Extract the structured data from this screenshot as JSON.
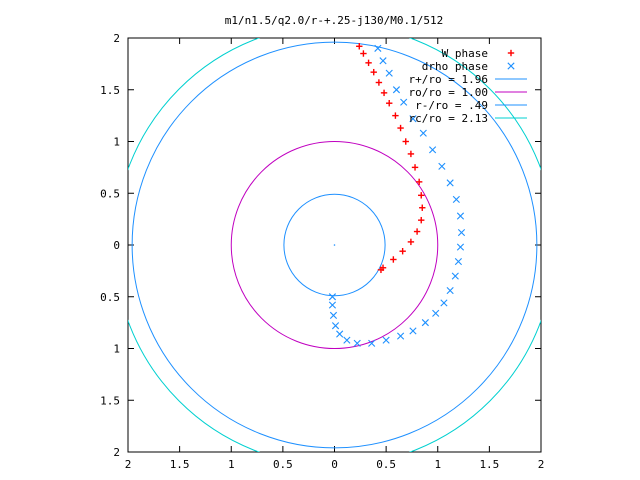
{
  "chart_data": {
    "type": "scatter",
    "title": "m1/n1.5/q2.0/r-+.25-j130/M0.1/512",
    "xlabel": "",
    "ylabel": "",
    "xlim": [
      -2,
      2
    ],
    "ylim": [
      -2,
      2
    ],
    "grid": false,
    "legend_position": "top-right",
    "x_ticks": [
      {
        "value": -2,
        "label": "2"
      },
      {
        "value": -1.5,
        "label": "1.5"
      },
      {
        "value": -1,
        "label": "1"
      },
      {
        "value": -0.5,
        "label": "0.5"
      },
      {
        "value": 0,
        "label": "0"
      },
      {
        "value": 0.5,
        "label": "0.5"
      },
      {
        "value": 1,
        "label": "1"
      },
      {
        "value": 1.5,
        "label": "1.5"
      },
      {
        "value": 2,
        "label": "2"
      }
    ],
    "y_ticks": [
      {
        "value": 2,
        "label": "2"
      },
      {
        "value": 1.5,
        "label": "1.5"
      },
      {
        "value": 1,
        "label": "1"
      },
      {
        "value": 0.5,
        "label": "0.5"
      },
      {
        "value": 0,
        "label": "0"
      },
      {
        "value": -0.5,
        "label": "0.5"
      },
      {
        "value": -1,
        "label": "1"
      },
      {
        "value": -1.5,
        "label": "1.5"
      },
      {
        "value": -2,
        "label": "2"
      }
    ],
    "series": [
      {
        "name": "W phase",
        "kind": "points",
        "marker": "+",
        "color": "#ff0000",
        "points": [
          [
            0.24,
            1.92
          ],
          [
            0.28,
            1.85
          ],
          [
            0.33,
            1.76
          ],
          [
            0.38,
            1.67
          ],
          [
            0.43,
            1.57
          ],
          [
            0.48,
            1.47
          ],
          [
            0.53,
            1.37
          ],
          [
            0.59,
            1.25
          ],
          [
            0.64,
            1.13
          ],
          [
            0.69,
            1.0
          ],
          [
            0.74,
            0.88
          ],
          [
            0.78,
            0.75
          ],
          [
            0.82,
            0.61
          ],
          [
            0.84,
            0.48
          ],
          [
            0.85,
            0.36
          ],
          [
            0.84,
            0.24
          ],
          [
            0.8,
            0.13
          ],
          [
            0.74,
            0.03
          ],
          [
            0.66,
            -0.06
          ],
          [
            0.57,
            -0.14
          ],
          [
            0.47,
            -0.22
          ],
          [
            0.45,
            -0.24
          ]
        ]
      },
      {
        "name": "drho phase",
        "kind": "points",
        "marker": "x",
        "color": "#1e90ff",
        "points": [
          [
            0.42,
            1.9
          ],
          [
            0.47,
            1.78
          ],
          [
            0.53,
            1.66
          ],
          [
            0.6,
            1.5
          ],
          [
            0.67,
            1.38
          ],
          [
            0.76,
            1.22
          ],
          [
            0.86,
            1.08
          ],
          [
            0.95,
            0.92
          ],
          [
            1.04,
            0.76
          ],
          [
            1.12,
            0.6
          ],
          [
            1.18,
            0.44
          ],
          [
            1.22,
            0.28
          ],
          [
            1.23,
            0.12
          ],
          [
            1.22,
            -0.02
          ],
          [
            1.2,
            -0.16
          ],
          [
            1.17,
            -0.3
          ],
          [
            1.12,
            -0.44
          ],
          [
            1.06,
            -0.56
          ],
          [
            0.98,
            -0.66
          ],
          [
            0.88,
            -0.75
          ],
          [
            0.76,
            -0.83
          ],
          [
            0.64,
            -0.88
          ],
          [
            0.5,
            -0.92
          ],
          [
            0.36,
            -0.95
          ],
          [
            0.22,
            -0.95
          ],
          [
            0.12,
            -0.92
          ],
          [
            0.05,
            -0.86
          ],
          [
            0.01,
            -0.78
          ],
          [
            -0.01,
            -0.68
          ],
          [
            -0.02,
            -0.58
          ],
          [
            -0.02,
            -0.5
          ]
        ]
      },
      {
        "name": "r+/ro = 1.96",
        "kind": "circle",
        "radius": 1.96,
        "color": "#1e90ff"
      },
      {
        "name": "ro/ro = 1.00",
        "kind": "circle",
        "radius": 1.0,
        "color": "#c000c0"
      },
      {
        "name": "r-/ro = .49",
        "kind": "circle",
        "radius": 0.49,
        "color": "#1e90ff"
      },
      {
        "name": "rc/ro = 2.13",
        "kind": "circle",
        "radius": 2.13,
        "color": "#00d0d0"
      }
    ]
  }
}
